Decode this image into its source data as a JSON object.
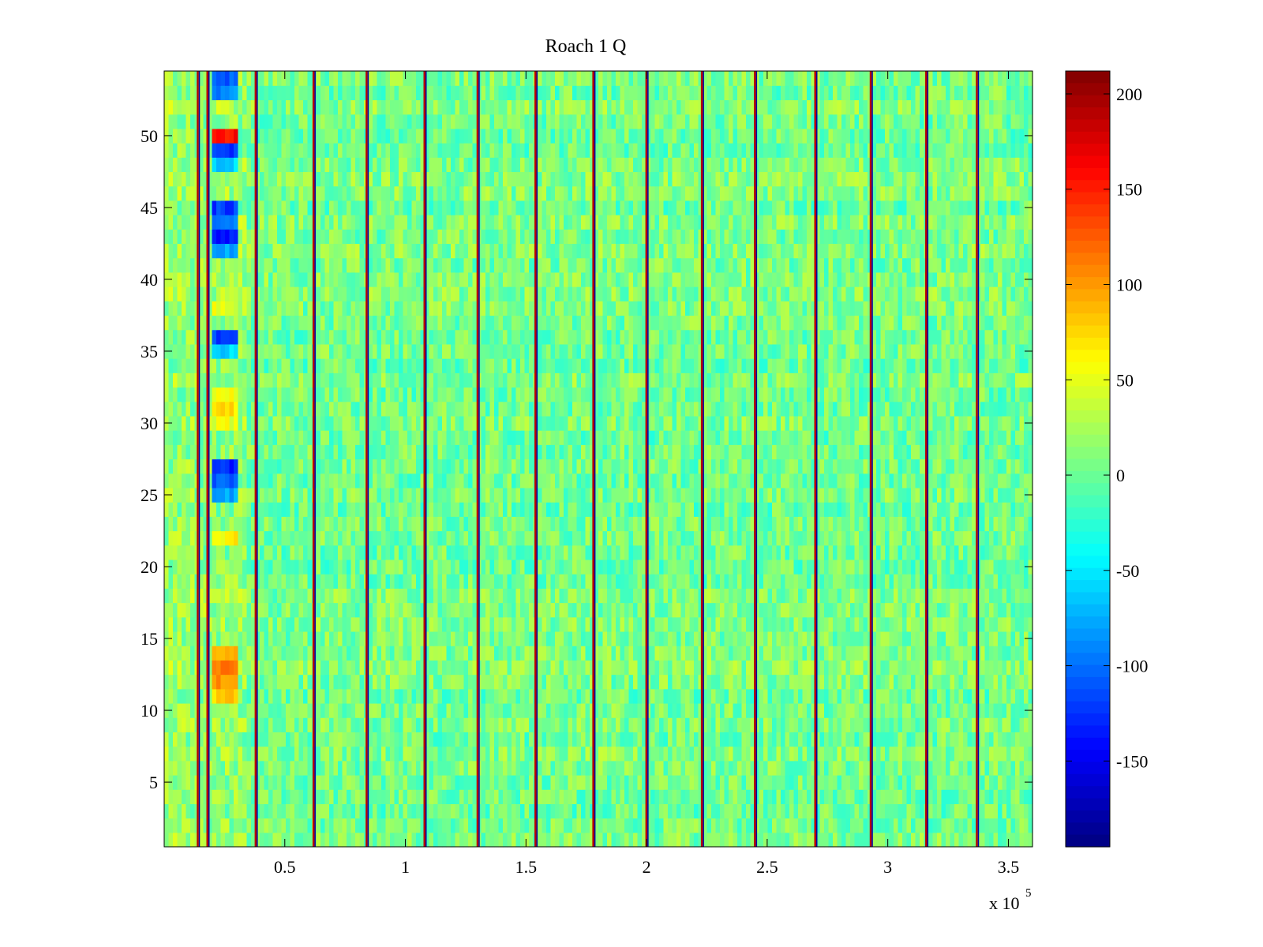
{
  "chart_data": {
    "type": "heatmap",
    "title": "Roach 1 Q",
    "xlabel": "",
    "ylabel": "",
    "x_exponent_label": "x 10",
    "x_exponent_power": "5",
    "xlim": [
      0,
      3.6
    ],
    "ylim": [
      0.5,
      54.5
    ],
    "x_ticks": [
      0.5,
      1,
      1.5,
      2,
      2.5,
      3,
      3.5
    ],
    "x_tick_labels": [
      "0.5",
      "1",
      "1.5",
      "2",
      "2.5",
      "3",
      "3.5"
    ],
    "y_ticks": [
      5,
      10,
      15,
      20,
      25,
      30,
      35,
      40,
      45,
      50
    ],
    "y_tick_labels": [
      "5",
      "10",
      "15",
      "20",
      "25",
      "30",
      "35",
      "40",
      "45",
      "50"
    ],
    "rows": 54,
    "colormap": "jet",
    "clim": [
      -195,
      212
    ],
    "colorbar_ticks": [
      200,
      150,
      100,
      50,
      0,
      -50,
      -100,
      -150
    ],
    "colorbar_tick_labels": [
      "200",
      "150",
      "100",
      "50",
      "0",
      "-50",
      "-100",
      "-150"
    ],
    "background_mean": 5,
    "noise_amplitude": 28,
    "vertical_stripes_x": [
      0.14,
      0.18,
      0.38,
      0.62,
      0.84,
      1.08,
      1.3,
      1.54,
      1.78,
      2.0,
      2.23,
      2.45,
      2.7,
      2.93,
      3.16,
      3.37
    ],
    "stripe_value_high": 190,
    "stripe_value_low": -180,
    "anomaly_region_x": [
      0.2,
      0.3
    ],
    "anomalies": [
      {
        "row": 54,
        "value": -110
      },
      {
        "row": 53,
        "value": -90
      },
      {
        "row": 50,
        "value": 160
      },
      {
        "row": 49,
        "value": -120
      },
      {
        "row": 48,
        "value": -60
      },
      {
        "row": 45,
        "value": -120
      },
      {
        "row": 44,
        "value": -100
      },
      {
        "row": 43,
        "value": -130
      },
      {
        "row": 42,
        "value": -80
      },
      {
        "row": 38,
        "value": 50
      },
      {
        "row": 36,
        "value": -120
      },
      {
        "row": 35,
        "value": -60
      },
      {
        "row": 32,
        "value": 55
      },
      {
        "row": 31,
        "value": 70
      },
      {
        "row": 30,
        "value": 50
      },
      {
        "row": 27,
        "value": -130
      },
      {
        "row": 26,
        "value": -110
      },
      {
        "row": 25,
        "value": -80
      },
      {
        "row": 22,
        "value": 60
      },
      {
        "row": 14,
        "value": 80
      },
      {
        "row": 13,
        "value": 110
      },
      {
        "row": 12,
        "value": 100
      },
      {
        "row": 11,
        "value": 80
      }
    ]
  }
}
